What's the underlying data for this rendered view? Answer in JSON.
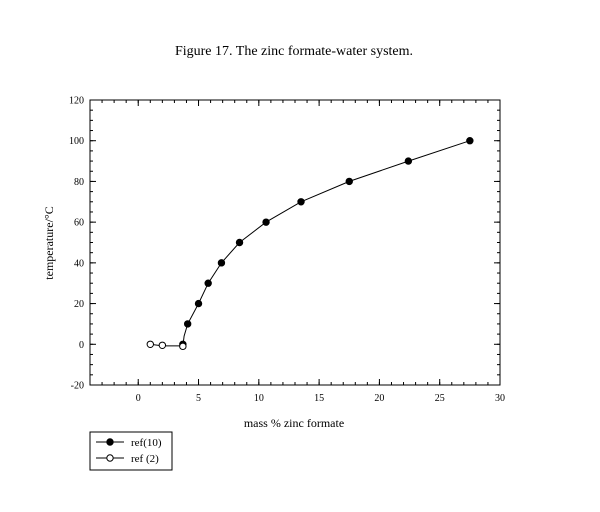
{
  "chart_data": {
    "type": "scatter",
    "title": "Figure 17. The zinc formate-water system.",
    "xlabel": "mass % zinc formate",
    "ylabel": "temperature/°C",
    "xlim": [
      -4,
      30
    ],
    "ylim": [
      -20,
      120
    ],
    "x_ticks": [
      0,
      5,
      10,
      15,
      20,
      25,
      30
    ],
    "y_ticks": [
      -20,
      0,
      20,
      40,
      60,
      80,
      100,
      120
    ],
    "grid": false,
    "legend_position": "bottom-left",
    "series": [
      {
        "name": "ref(10)",
        "marker": "filled-circle",
        "color": "#000000",
        "x": [
          3.7,
          4.1,
          5.0,
          5.8,
          6.9,
          8.4,
          10.6,
          13.5,
          17.5,
          22.4,
          27.5
        ],
        "y": [
          0,
          10,
          20,
          30,
          40,
          50,
          60,
          70,
          80,
          90,
          100
        ]
      },
      {
        "name": "ref (2)",
        "marker": "open-circle",
        "color": "#000000",
        "x": [
          1.0,
          2.0,
          3.7
        ],
        "y": [
          0,
          -0.5,
          -1
        ]
      }
    ],
    "curve": {
      "x": [
        1.0,
        2.0,
        3.7,
        3.8,
        4.1,
        5.0,
        5.8,
        6.9,
        8.4,
        10.6,
        13.5,
        17.5,
        22.4,
        27.5
      ],
      "y": [
        0,
        -0.8,
        -0.8,
        4,
        10,
        20,
        30,
        40,
        50,
        60,
        70,
        80,
        90,
        100
      ]
    }
  }
}
